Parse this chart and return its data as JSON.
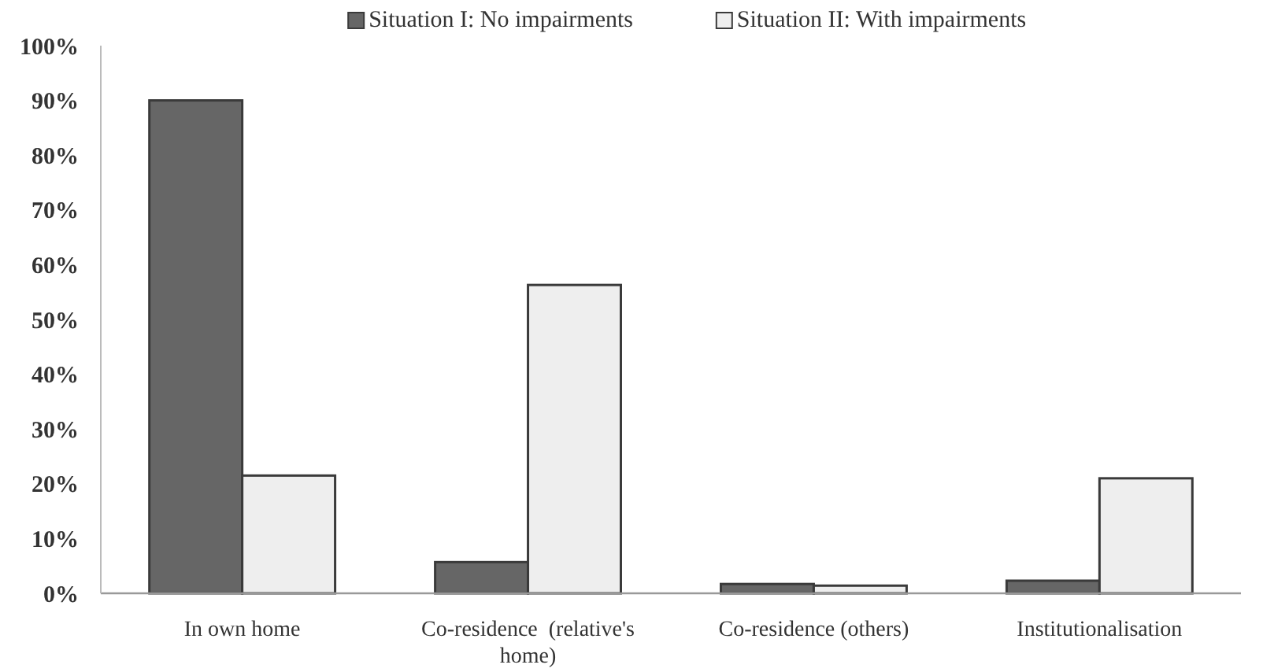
{
  "chart_data": {
    "type": "bar",
    "categories": [
      "In own home",
      "Co-residence  (relative's home)",
      "Co-residence (others)",
      "Institutionalisation"
    ],
    "series": [
      {
        "name": "Situation I: No impairments",
        "color": "#666666",
        "values": [
          90,
          5.7,
          1.7,
          2.3
        ]
      },
      {
        "name": "Situation II: With impairments",
        "color": "#eeeeee",
        "values": [
          21.5,
          56.3,
          1.4,
          21
        ]
      }
    ],
    "ylim": [
      0,
      100
    ],
    "yticks": [
      {
        "value": 0,
        "label": "0%"
      },
      {
        "value": 10,
        "label": "10%"
      },
      {
        "value": 20,
        "label": "20%"
      },
      {
        "value": 30,
        "label": "30%"
      },
      {
        "value": 40,
        "label": "40%"
      },
      {
        "value": 50,
        "label": "50%"
      },
      {
        "value": 60,
        "label": "60%"
      },
      {
        "value": 70,
        "label": "70%"
      },
      {
        "value": 80,
        "label": "80%"
      },
      {
        "value": 90,
        "label": "90%"
      },
      {
        "value": 100,
        "label": "100%"
      }
    ],
    "grid": false,
    "legend": "top"
  }
}
